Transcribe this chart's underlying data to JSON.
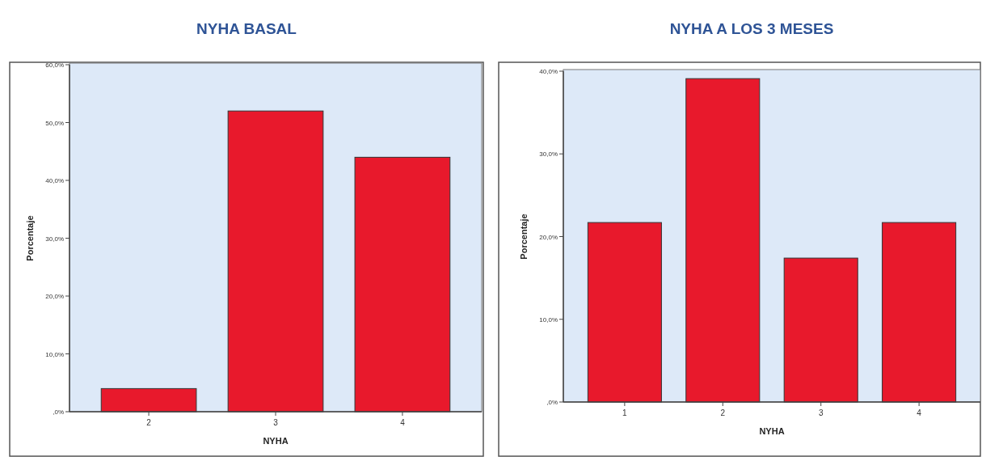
{
  "chart_data": [
    {
      "type": "bar",
      "title": "NYHA BASAL",
      "xlabel": "NYHA",
      "ylabel": "Porcentaje",
      "categories": [
        "2",
        "3",
        "4"
      ],
      "values": [
        4.0,
        52.0,
        44.0
      ],
      "color": "#e8192c",
      "ylim": [
        0,
        60
      ],
      "yticks": [
        {
          "value": 0,
          "label": ",0%"
        },
        {
          "value": 10,
          "label": "10,0%"
        },
        {
          "value": 20,
          "label": "20,0%"
        },
        {
          "value": 30,
          "label": "30,0%"
        },
        {
          "value": 40,
          "label": "40,0%"
        },
        {
          "value": 50,
          "label": "50,0%"
        },
        {
          "value": 60,
          "label": "60,0%"
        }
      ]
    },
    {
      "type": "bar",
      "title": "NYHA A LOS 3 MESES",
      "xlabel": "NYHA",
      "ylabel": "Porcentaje",
      "categories": [
        "1",
        "2",
        "3",
        "4"
      ],
      "values": [
        21.7,
        39.1,
        17.4,
        21.7
      ],
      "color": "#e8192c",
      "ylim": [
        0,
        40
      ],
      "yticks": [
        {
          "value": 0,
          "label": ",0%"
        },
        {
          "value": 10,
          "label": "10,0%"
        },
        {
          "value": 20,
          "label": "20,0%"
        },
        {
          "value": 30,
          "label": "30,0%"
        },
        {
          "value": 40,
          "label": "40,0%"
        }
      ]
    }
  ]
}
